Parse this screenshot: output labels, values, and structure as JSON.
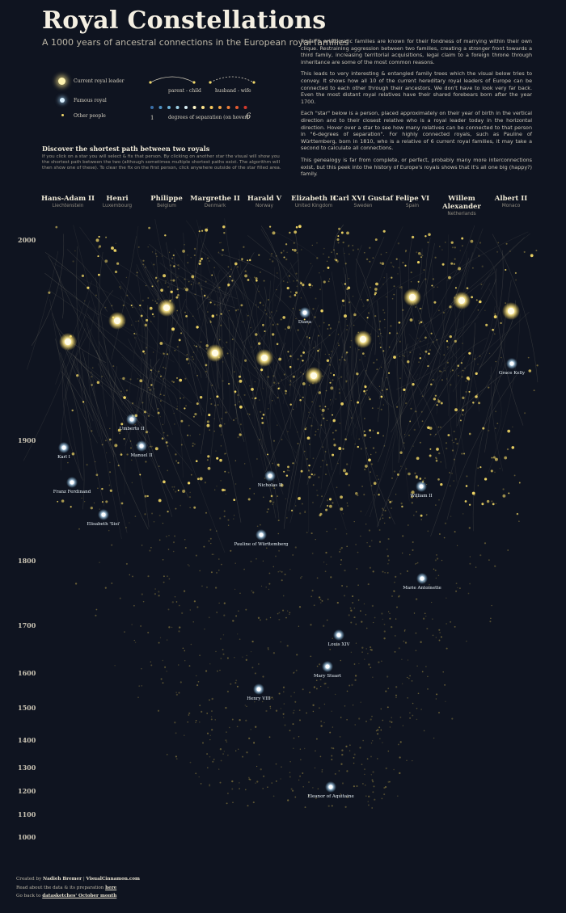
{
  "header": {
    "title": "Royal Constellations",
    "subtitle": "A 1000 years of ancestral connections in the European royal families"
  },
  "intro": {
    "p1": "Royal & aristocratic families are known for their fondness of marrying within their own clique. Restraining aggression between two families, creating a stronger front towards a third family, increasing territorial acquisitions, legal claim to a foreign throne through inheritance are some of the most common reasons.",
    "p2": "This leads to very interesting & entangled family trees which the visual below tries to convey. It shows how all 10 of the current hereditary royal leaders of Europe can be connected to each other through their ancestors. We don't have to look very far back. Even the most distant royal relatives have their shared forebears born after the year 1700.",
    "p3": "Each \"star\" below is a person, placed approximately on their year of birth in the vertical direction and to their closest relative who is a royal leader today in the horizontal direction. Hover over a star to see how many relatives can be connected to that person in \"6-degrees of separation\". For highly connected royals, such as Pauline of Württemberg, born in 1810, who is a relative of 6 current royal families, it may take a second to calculate all connections.",
    "p4": "This genealogy is far from complete, or perfect, probably many more interconnections exist, but this peek into the history of Europe's royals shows that it's all one big (happy?) family."
  },
  "legend": {
    "leader": "Current royal leader",
    "famous": "Famous royal",
    "other": "Other people",
    "parent_child": "parent - child",
    "husband_wife": "husband - wife",
    "degrees": "degrees of separation (on hover)",
    "degree_min": "1",
    "degree_max": "6",
    "degree_colors": [
      "#3a6fa8",
      "#4d8fc2",
      "#6db3d8",
      "#9fd2e6",
      "#d6ecf2",
      "#fff6c8",
      "#fde48a",
      "#f8c95e",
      "#f2a446",
      "#ec7f3a",
      "#e35a31",
      "#d63a2c"
    ]
  },
  "shortest_path": {
    "title": "Discover the shortest path between two royals",
    "text": "If you click on a star you will select & fix that person. By clicking on another star the visual will show you the shortest path between the two (although sometimes multiple shortest paths exist. The algorithm will then show one of these). To clear the fix on the first person, click anywhere outside of the star filled area."
  },
  "royals": [
    {
      "name": "Hans-Adam II",
      "country": "Liechtenstein"
    },
    {
      "name": "Henri",
      "country": "Luxembourg"
    },
    {
      "name": "Philippe",
      "country": "Belgium"
    },
    {
      "name": "Margrethe II",
      "country": "Denmark"
    },
    {
      "name": "Harald V",
      "country": "Norway"
    },
    {
      "name": "Elizabeth II",
      "country": "United Kingdom"
    },
    {
      "name": "Carl XVI Gustaf",
      "country": "Sweden"
    },
    {
      "name": "Felipe VI",
      "country": "Spain"
    },
    {
      "name": "Willem Alexander",
      "country": "Netherlands"
    },
    {
      "name": "Albert II",
      "country": "Monaco"
    }
  ],
  "year_axis": [
    "2000",
    "1900",
    "1800",
    "1700",
    "1600",
    "1500",
    "1400",
    "1300",
    "1200",
    "1100",
    "1000"
  ],
  "famous_royals": [
    {
      "name": "Diana"
    },
    {
      "name": "Grace Kelly"
    },
    {
      "name": "Umberto II"
    },
    {
      "name": "Manuel II"
    },
    {
      "name": "Karl I"
    },
    {
      "name": "Franz Ferdinand"
    },
    {
      "name": "Nicholas II"
    },
    {
      "name": "William II"
    },
    {
      "name": "Elisabeth 'Sisi'"
    },
    {
      "name": "Pauline of Württemberg"
    },
    {
      "name": "Marie Antoinette"
    },
    {
      "name": "Louis XIV"
    },
    {
      "name": "Mary Stuart"
    },
    {
      "name": "Henry VIII"
    },
    {
      "name": "Eleanor of Aquitaine"
    }
  ],
  "footer": {
    "created_prefix": "Created by",
    "author": "Nadieh Bremer",
    "site": "VisualCinnamon.com",
    "read_text": "Read about the data & its preparation",
    "read_link": "here",
    "back_text": "Go back to",
    "back_link": "datasketches' October month"
  }
}
